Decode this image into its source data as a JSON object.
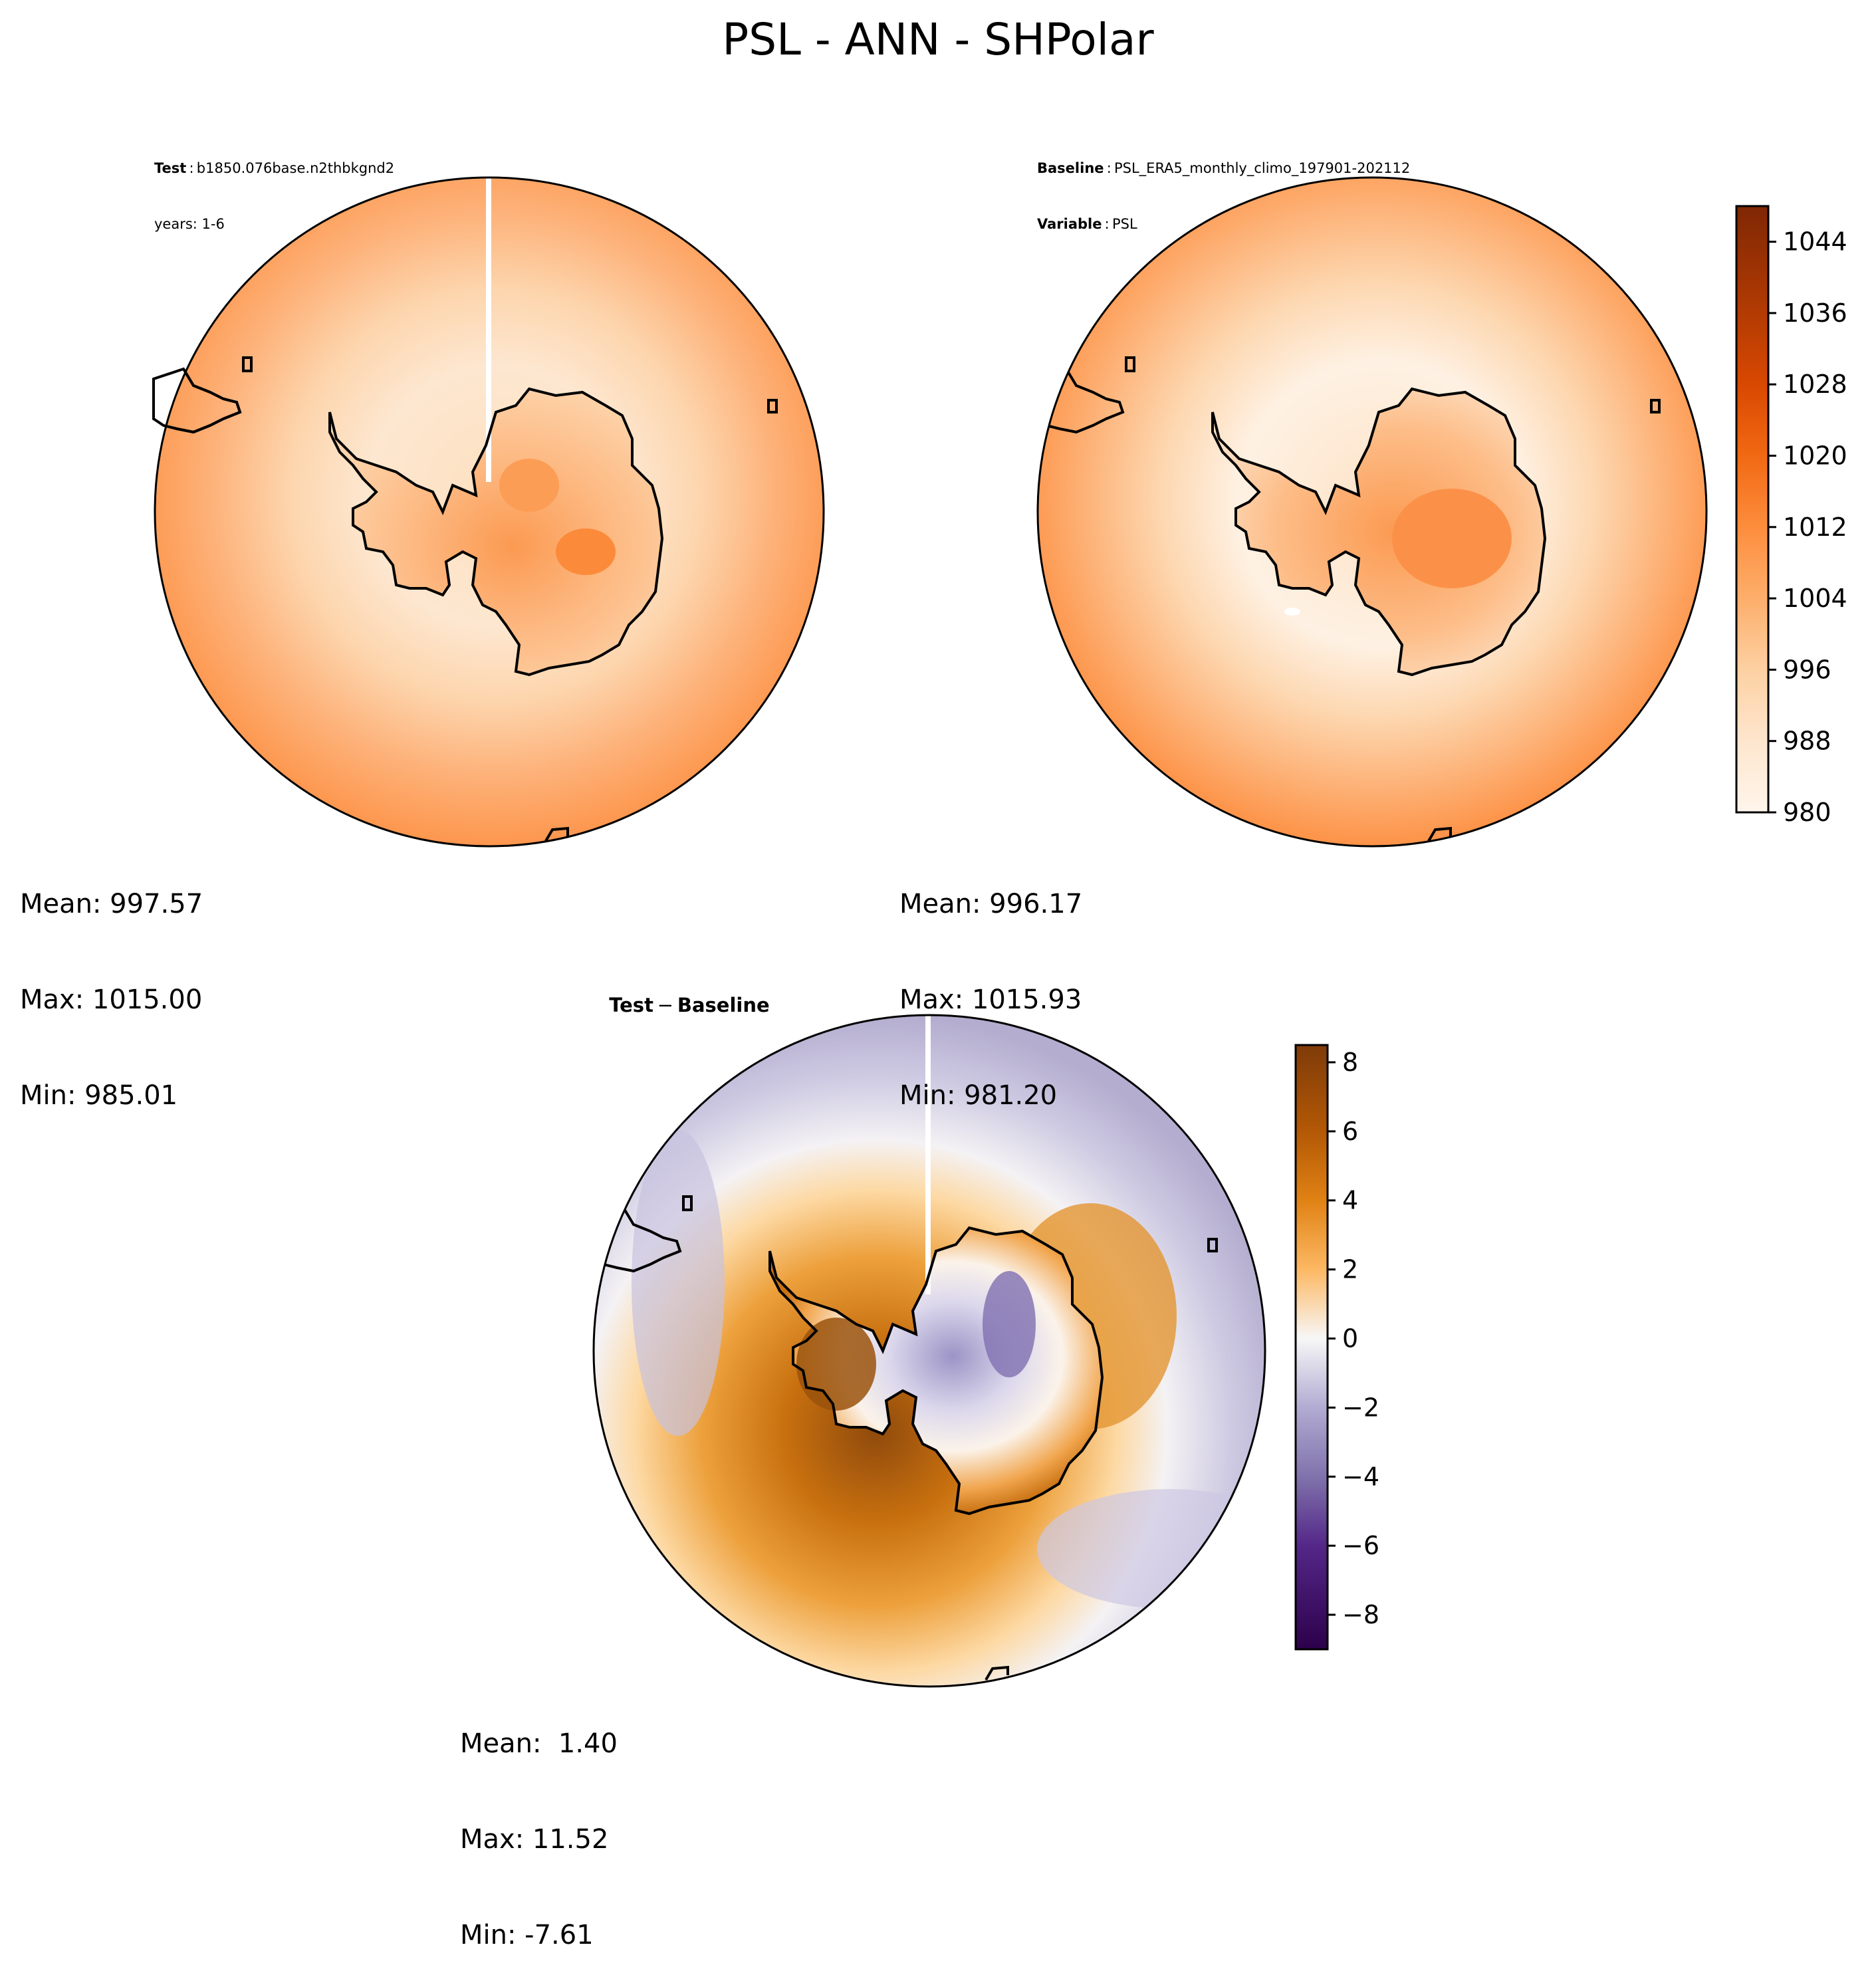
{
  "figure": {
    "title": "PSL - ANN - SHPolar"
  },
  "panels": {
    "test": {
      "header_key": "Test",
      "header_value": "b1850.076base.n2thbkgnd2",
      "header_line2": "years: 1-6",
      "stats": {
        "mean": "Mean: 997.57",
        "max": "Max: 1015.00",
        "min": "Min: 985.01"
      }
    },
    "baseline": {
      "header_key": "Baseline",
      "header_value": "PSL_ERA5_monthly_climo_197901-202112",
      "header_key2": "Variable",
      "header_value2": "PSL",
      "stats": {
        "mean": "Mean: 996.17",
        "max": "Max: 1015.93",
        "min": "Min: 981.20"
      }
    },
    "difference": {
      "header_test": "Test",
      "header_minus": "−",
      "header_base": "Baseline",
      "stats": {
        "mean": "Mean:  1.40",
        "max": "Max: 11.52",
        "min": "Min: -7.61"
      }
    }
  },
  "chart_data": [
    {
      "type": "heatmap",
      "projection": "south-polar-stereographic",
      "panel": "test",
      "title": "",
      "colormap": "Oranges",
      "levels": {
        "min": 980,
        "max": 1048,
        "step": 4
      },
      "field_summary": {
        "mean": 997.57,
        "max": 1015.0,
        "min": 985.01
      },
      "colors": [
        "#fff5eb",
        "#fdd7b0",
        "#fdba7d",
        "#fd9a4f",
        "#f07a26"
      ]
    },
    {
      "type": "heatmap",
      "projection": "south-polar-stereographic",
      "panel": "baseline",
      "title": "",
      "colormap": "Oranges",
      "levels": {
        "min": 980,
        "max": 1048,
        "step": 4
      },
      "field_summary": {
        "mean": 996.17,
        "max": 1015.93,
        "min": 981.2
      },
      "colorbar": {
        "range": [
          980,
          1048
        ],
        "tick_values": [
          980,
          988,
          996,
          1004,
          1012,
          1020,
          1028,
          1036,
          1044
        ],
        "tick_labels": [
          "980",
          "988",
          "996",
          "1004",
          "1012",
          "1020",
          "1028",
          "1036",
          "1044"
        ],
        "stops": [
          {
            "v": 980,
            "c": "#fff5eb"
          },
          {
            "v": 988,
            "c": "#fee6ce"
          },
          {
            "v": 996,
            "c": "#fdd0a2"
          },
          {
            "v": 1004,
            "c": "#fdae6b"
          },
          {
            "v": 1012,
            "c": "#fd8d3c"
          },
          {
            "v": 1020,
            "c": "#f16913"
          },
          {
            "v": 1028,
            "c": "#d94801"
          },
          {
            "v": 1036,
            "c": "#b33b03"
          },
          {
            "v": 1048,
            "c": "#7f2704"
          }
        ]
      }
    },
    {
      "type": "heatmap",
      "projection": "south-polar-stereographic",
      "panel": "difference",
      "title": "",
      "colormap": "PuOr_r",
      "levels": {
        "min": -9,
        "max": 9,
        "step": 0.5
      },
      "field_summary": {
        "mean": 1.4,
        "max": 11.52,
        "min": -7.61
      },
      "colorbar": {
        "range": [
          -9,
          8.5
        ],
        "tick_values": [
          -8,
          -6,
          -4,
          -2,
          0,
          2,
          4,
          6,
          8
        ],
        "tick_labels": [
          "−8",
          "−6",
          "−4",
          "−2",
          "0",
          "2",
          "4",
          "6",
          "8"
        ],
        "stops": [
          {
            "v": -9,
            "c": "#2d004b"
          },
          {
            "v": -6,
            "c": "#542788"
          },
          {
            "v": -4,
            "c": "#8073ac"
          },
          {
            "v": -2,
            "c": "#b2abd2"
          },
          {
            "v": 0,
            "c": "#f7f7f7"
          },
          {
            "v": 2,
            "c": "#fdb863"
          },
          {
            "v": 4,
            "c": "#e08214"
          },
          {
            "v": 6,
            "c": "#b35806"
          },
          {
            "v": 8.5,
            "c": "#7f3b08"
          }
        ]
      }
    }
  ]
}
